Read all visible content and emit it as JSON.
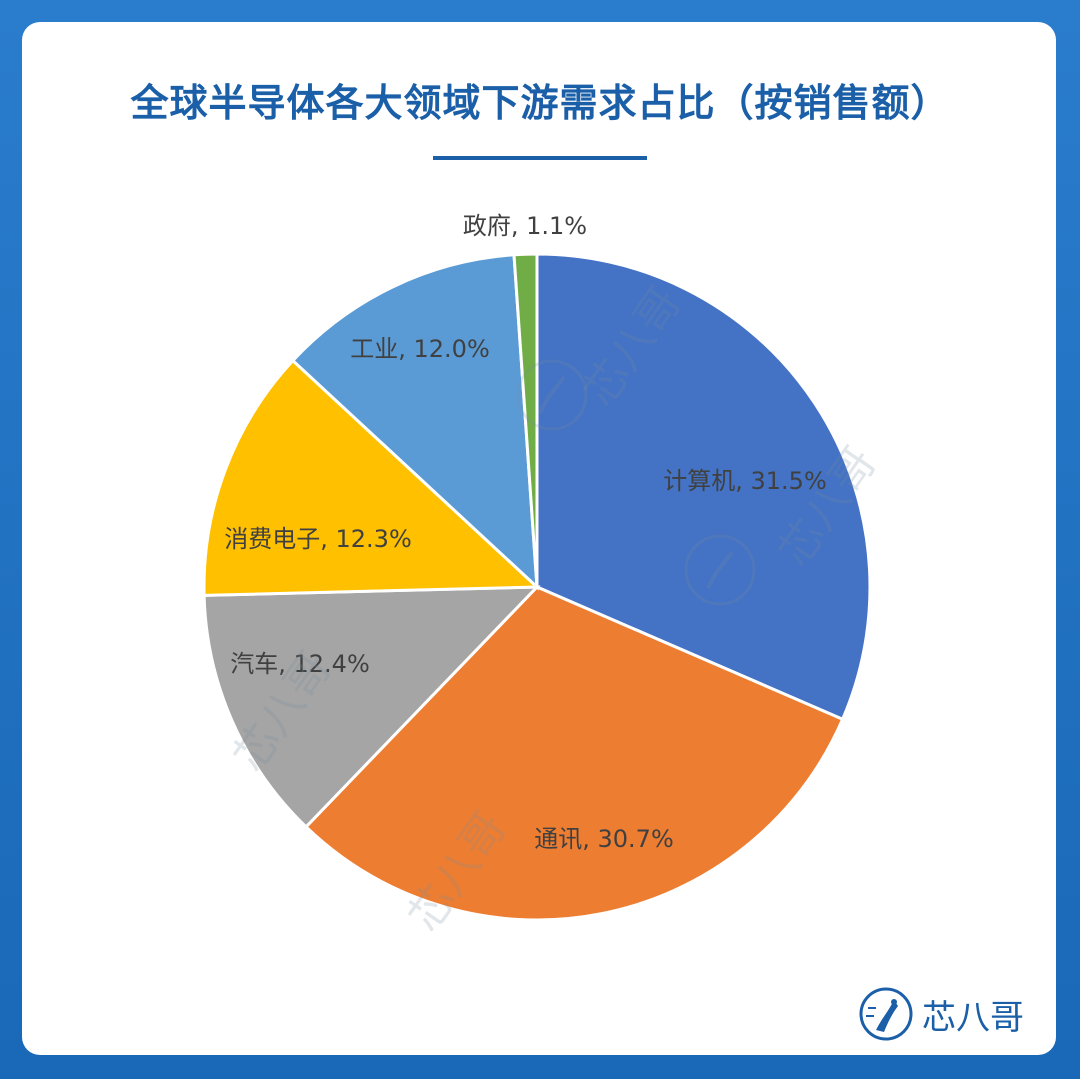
{
  "title": "全球半导体各大领域下游需求占比（按销售额）",
  "watermark": "芯八哥",
  "brand": {
    "name": "芯八哥",
    "icon": "bird-logo-icon"
  },
  "chart_data": {
    "type": "pie",
    "title": "全球半导体各大领域下游需求占比（按销售额）",
    "unit": "%",
    "slices": [
      {
        "name": "计算机",
        "value": 31.5,
        "label": "计算机, 31.5%",
        "color": "#4472c4"
      },
      {
        "name": "通讯",
        "value": 30.7,
        "label": "通讯, 30.7%",
        "color": "#ed7d31"
      },
      {
        "name": "汽车",
        "value": 12.4,
        "label": "汽车, 12.4%",
        "color": "#a5a5a5"
      },
      {
        "name": "消费电子",
        "value": 12.3,
        "label": "消费电子, 12.3%",
        "color": "#ffc000"
      },
      {
        "name": "工业",
        "value": 12.0,
        "label": "工业, 12.0%",
        "color": "#5b9bd5"
      },
      {
        "name": "政府",
        "value": 1.1,
        "label": "政府, 1.1%",
        "color": "#70ad47"
      }
    ],
    "start": "12 o'clock",
    "direction": "clockwise",
    "legend": "none"
  }
}
